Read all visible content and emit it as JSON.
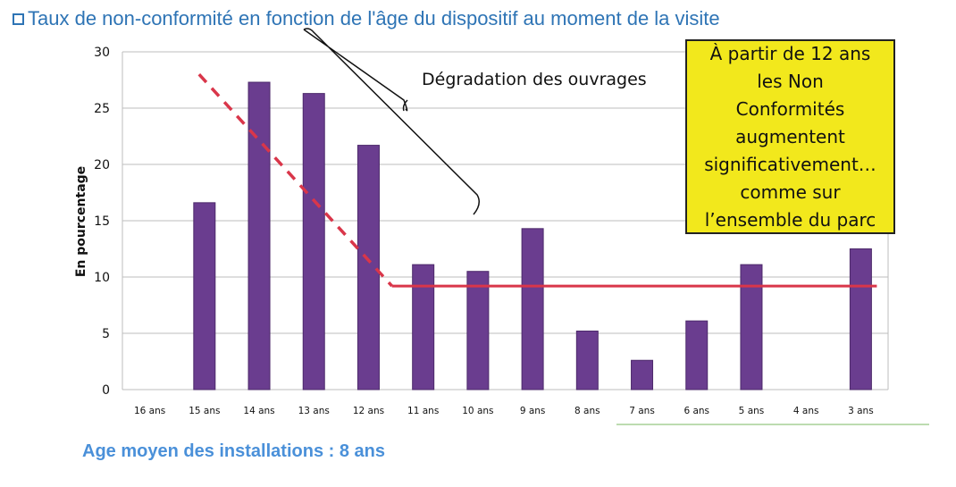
{
  "title": "Taux de non-conformité en fonction de l'âge du dispositif au moment de la visite",
  "callout": {
    "lines": [
      "À partir de 12 ans",
      "les Non",
      "Conformités",
      "augmentent",
      "significativement…",
      "comme sur",
      "l’ensemble du parc"
    ]
  },
  "footer": "Age moyen des installations : 8 ans",
  "colors": {
    "bar": "#6a3d8f",
    "trend": "#d9364a",
    "title": "#2e74b5",
    "callout_bg": "#f2e81c",
    "footer": "#4a90d9"
  },
  "chart_data": {
    "type": "bar",
    "title": "Taux de non-conformité en fonction de l'âge du dispositif au moment de la visite",
    "xlabel": "",
    "ylabel": "En pourcentage",
    "ylim": [
      0,
      30
    ],
    "yticks": [
      0,
      5,
      10,
      15,
      20,
      25,
      30
    ],
    "grid": true,
    "categories": [
      "16 ans",
      "15 ans",
      "14 ans",
      "13 ans",
      "12 ans",
      "11 ans",
      "10 ans",
      "9 ans",
      "8 ans",
      "7 ans",
      "6 ans",
      "5 ans",
      "4 ans",
      "3 ans"
    ],
    "values": [
      0,
      16.6,
      27.3,
      26.3,
      21.7,
      11.1,
      10.5,
      14.3,
      5.2,
      2.6,
      6.1,
      11.1,
      0,
      12.5
    ],
    "trend_line": {
      "decline": {
        "from": {
          "category": "15 ans",
          "value": 28
        },
        "to": {
          "category": "11 ans",
          "value": 9.2
        },
        "style": "dashed"
      },
      "plateau": {
        "from": {
          "category": "11 ans",
          "value": 9.2
        },
        "to": {
          "category": "3 ans",
          "value": 9.2
        },
        "style": "solid"
      }
    },
    "annotations": [
      "Dégradation des ouvrages"
    ]
  }
}
